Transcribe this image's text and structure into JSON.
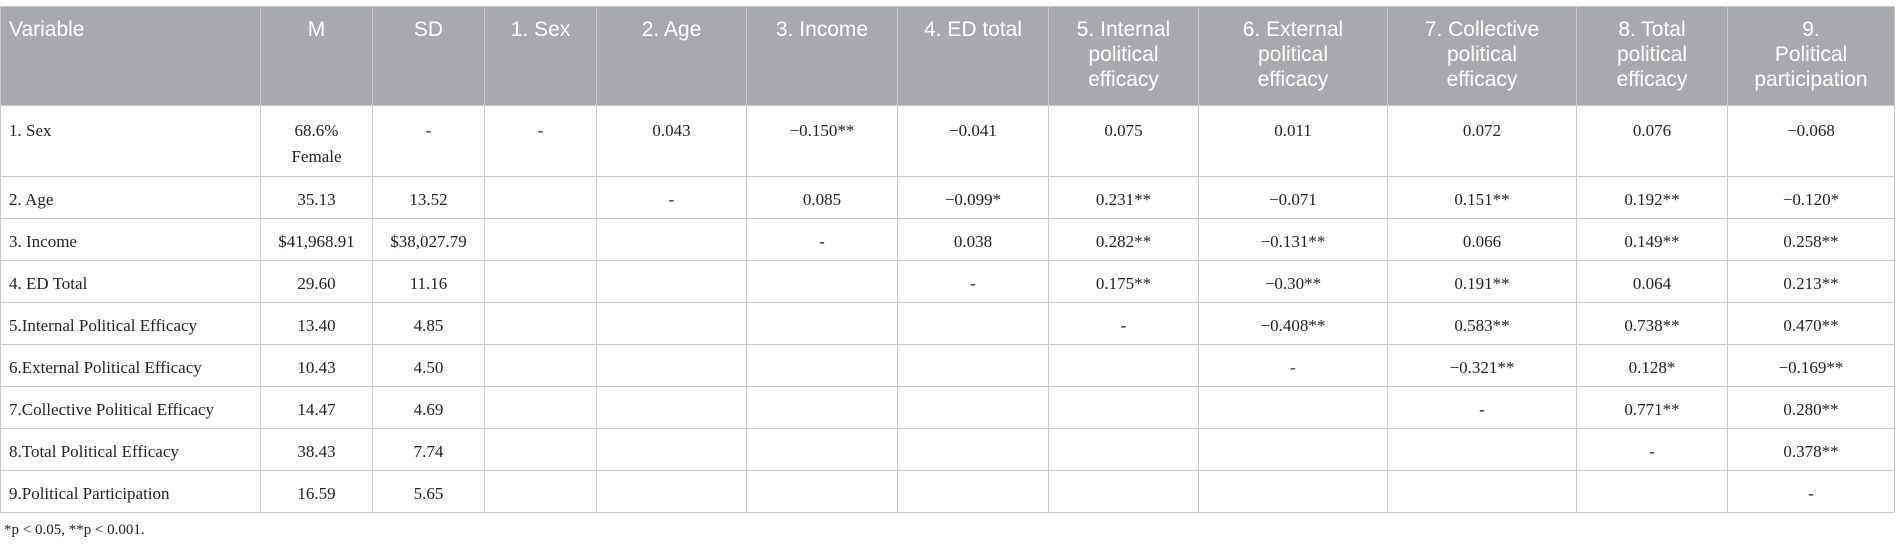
{
  "table": {
    "headers": [
      [
        "Variable"
      ],
      [
        "M"
      ],
      [
        "SD"
      ],
      [
        "1. Sex"
      ],
      [
        "2. Age"
      ],
      [
        "3. Income"
      ],
      [
        "4. ED total"
      ],
      [
        "5. Internal",
        "political",
        "efficacy"
      ],
      [
        "6. External",
        "political",
        "efficacy"
      ],
      [
        "7. Collective",
        "political",
        "efficacy"
      ],
      [
        "8. Total",
        "political",
        "efficacy"
      ],
      [
        "9.",
        "Political",
        "participation"
      ]
    ],
    "rows": [
      [
        "1. Sex",
        "68.6%\nFemale",
        "-",
        "-",
        "0.043",
        "−0.150**",
        "−0.041",
        "0.075",
        "0.011",
        "0.072",
        "0.076",
        "−0.068"
      ],
      [
        "2. Age",
        "35.13",
        "13.52",
        "",
        "-",
        "0.085",
        "−0.099*",
        "0.231**",
        "−0.071",
        "0.151**",
        "0.192**",
        "−0.120*"
      ],
      [
        "3. Income",
        "$41,968.91",
        "$38,027.79",
        "",
        "",
        "-",
        "0.038",
        "0.282**",
        "−0.131**",
        "0.066",
        "0.149**",
        "0.258**"
      ],
      [
        "4. ED Total",
        "29.60",
        "11.16",
        "",
        "",
        "",
        "-",
        "0.175**",
        "−0.30**",
        "0.191**",
        "0.064",
        "0.213**"
      ],
      [
        "5.Internal Political Efficacy",
        "13.40",
        "4.85",
        "",
        "",
        "",
        "",
        "-",
        "−0.408**",
        "0.583**",
        "0.738**",
        "0.470**"
      ],
      [
        "6.External Political Efficacy",
        "10.43",
        "4.50",
        "",
        "",
        "",
        "",
        "",
        "-",
        "−0.321**",
        "0.128*",
        "−0.169**"
      ],
      [
        "7.Collective Political Efficacy",
        "14.47",
        "4.69",
        "",
        "",
        "",
        "",
        "",
        "",
        "-",
        "0.771**",
        "0.280**"
      ],
      [
        "8.Total Political Efficacy",
        "38.43",
        "7.74",
        "",
        "",
        "",
        "",
        "",
        "",
        "",
        "-",
        "0.378**"
      ],
      [
        "9.Political Participation",
        "16.59",
        "5.65",
        "",
        "",
        "",
        "",
        "",
        "",
        "",
        "",
        "-"
      ]
    ]
  },
  "footnote": "*p < 0.05, **p < 0.001."
}
